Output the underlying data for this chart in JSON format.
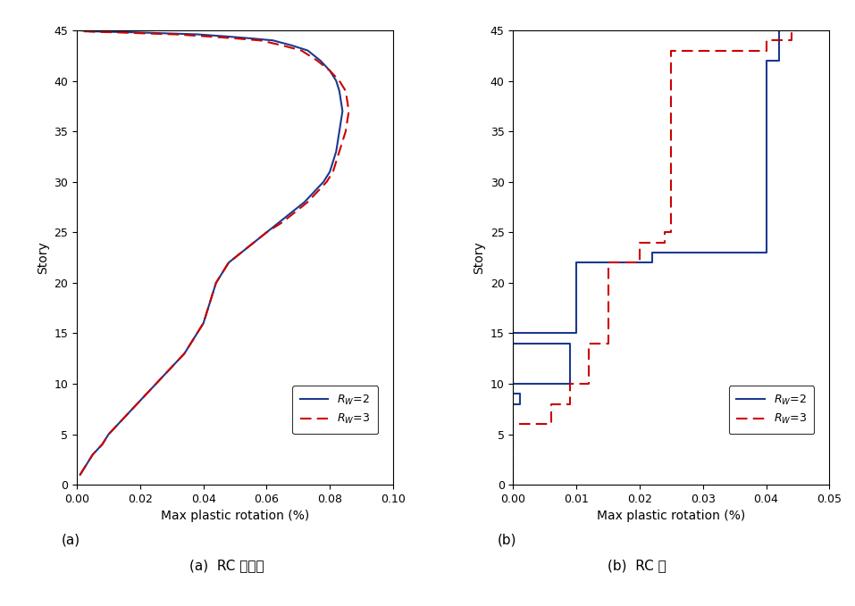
{
  "panel_a": {
    "rw2_x": [
      0.001,
      0.003,
      0.005,
      0.008,
      0.01,
      0.013,
      0.016,
      0.019,
      0.022,
      0.025,
      0.028,
      0.031,
      0.034,
      0.036,
      0.038,
      0.04,
      0.041,
      0.042,
      0.043,
      0.044,
      0.046,
      0.048,
      0.052,
      0.056,
      0.06,
      0.064,
      0.068,
      0.072,
      0.075,
      0.078,
      0.08,
      0.082,
      0.083,
      0.084,
      0.083,
      0.082,
      0.08,
      0.077,
      0.073,
      0.068,
      0.062,
      0.055,
      0.047,
      0.038,
      0.028,
      0.018,
      0.01,
      0.004,
      0.001
    ],
    "rw2_y": [
      1,
      2,
      3,
      4,
      5,
      6,
      7,
      8,
      9,
      10,
      11,
      12,
      13,
      14,
      15,
      16,
      17,
      18,
      19,
      20,
      21,
      22,
      23,
      24,
      25,
      26,
      27,
      28,
      29,
      30,
      31,
      33,
      35,
      37,
      39,
      40,
      41,
      42,
      43,
      43.5,
      44,
      44.2,
      44.4,
      44.6,
      44.7,
      44.8,
      44.85,
      44.9,
      45
    ],
    "rw3_x": [
      0.001,
      0.003,
      0.005,
      0.008,
      0.01,
      0.013,
      0.016,
      0.019,
      0.022,
      0.025,
      0.028,
      0.031,
      0.034,
      0.036,
      0.038,
      0.04,
      0.041,
      0.042,
      0.043,
      0.044,
      0.046,
      0.048,
      0.052,
      0.056,
      0.06,
      0.065,
      0.069,
      0.073,
      0.076,
      0.079,
      0.081,
      0.083,
      0.085,
      0.086,
      0.085,
      0.083,
      0.08,
      0.076,
      0.071,
      0.065,
      0.058,
      0.05,
      0.041,
      0.031,
      0.021,
      0.012,
      0.006,
      0.002,
      0.001
    ],
    "rw3_y": [
      1,
      2,
      3,
      4,
      5,
      6,
      7,
      8,
      9,
      10,
      11,
      12,
      13,
      14,
      15,
      16,
      17,
      18,
      19,
      20,
      21,
      22,
      23,
      24,
      25,
      26,
      27,
      28,
      29,
      30,
      31,
      33,
      35,
      37,
      39,
      40,
      41,
      42,
      43,
      43.5,
      44,
      44.2,
      44.4,
      44.6,
      44.7,
      44.8,
      44.85,
      44.9,
      45
    ],
    "xlim": [
      0,
      0.1
    ],
    "xticks": [
      0,
      0.02,
      0.04,
      0.06,
      0.08,
      0.1
    ],
    "ylim": [
      0,
      45
    ],
    "yticks": [
      0,
      5,
      10,
      15,
      20,
      25,
      30,
      35,
      40,
      45
    ],
    "xlabel": "Max plastic rotation (%)",
    "ylabel": "Story",
    "label": "(a)"
  },
  "panel_b": {
    "rw2_x": [
      0.0,
      0.0,
      0.001,
      0.001,
      0.0,
      0.0,
      0.009,
      0.009,
      0.0,
      0.0,
      0.01,
      0.01,
      0.022,
      0.022,
      0.04,
      0.04,
      0.042,
      0.042
    ],
    "rw2_y": [
      0,
      8,
      8,
      9,
      9,
      14,
      14,
      10,
      10,
      15,
      15,
      22,
      22,
      23,
      23,
      42,
      42,
      45
    ],
    "rw3_x": [
      0.0,
      0.0,
      0.006,
      0.006,
      0.009,
      0.009,
      0.012,
      0.012,
      0.015,
      0.015,
      0.02,
      0.02,
      0.024,
      0.024,
      0.025,
      0.025,
      0.04,
      0.04,
      0.044,
      0.044,
      0.045,
      0.045
    ],
    "rw3_y": [
      0,
      6,
      6,
      8,
      8,
      10,
      10,
      14,
      14,
      22,
      22,
      24,
      24,
      25,
      25,
      43,
      43,
      44,
      44,
      45,
      45,
      45
    ],
    "xlim": [
      0,
      0.05
    ],
    "xticks": [
      0,
      0.01,
      0.02,
      0.03,
      0.04,
      0.05
    ],
    "ylim": [
      0,
      45
    ],
    "yticks": [
      0,
      5,
      10,
      15,
      20,
      25,
      30,
      35,
      40,
      45
    ],
    "xlabel": "Max plastic rotation (%)",
    "ylabel": "Story",
    "label": "(b)"
  },
  "rw2_color": "#1a3a8f",
  "rw3_color": "#cc0000",
  "rw2_label": "$R_W$=2",
  "rw3_label": "$R_W$=3",
  "caption_a": "(a)  RC 연결보",
  "caption_b": "(b)  RC 보",
  "background_color": "#ffffff"
}
